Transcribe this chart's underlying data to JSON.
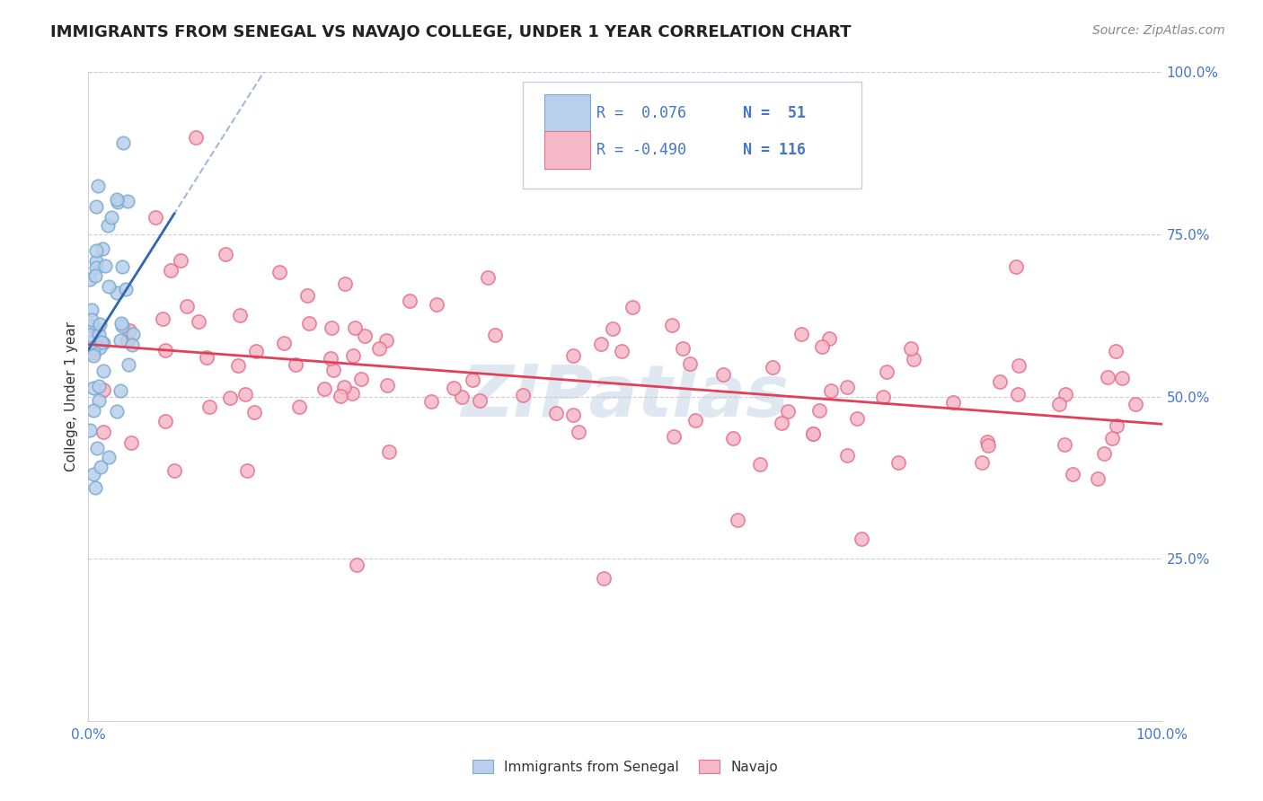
{
  "title": "IMMIGRANTS FROM SENEGAL VS NAVAJO COLLEGE, UNDER 1 YEAR CORRELATION CHART",
  "source": "Source: ZipAtlas.com",
  "ylabel": "College, Under 1 year",
  "xlim": [
    0,
    1
  ],
  "ylim": [
    0,
    1
  ],
  "x_tick_labels": [
    "0.0%",
    "100.0%"
  ],
  "y_tick_labels": [
    "25.0%",
    "50.0%",
    "75.0%",
    "100.0%"
  ],
  "y_tick_values": [
    0.25,
    0.5,
    0.75,
    1.0
  ],
  "legend_labels": [
    "Immigrants from Senegal",
    "Navajo"
  ],
  "legend_r_blue": "R =  0.076",
  "legend_n_blue": "N =  51",
  "legend_r_pink": "R = -0.490",
  "legend_n_pink": "N = 116",
  "blue_fill": "#b8d0eb",
  "blue_edge": "#7aaad0",
  "pink_fill": "#f5b8c8",
  "pink_edge": "#e87090",
  "blue_line_color": "#3366aa",
  "blue_dash_color": "#88aad0",
  "pink_line_color": "#e0405a",
  "axis_color": "#4477cc",
  "grid_color": "#ccccdd",
  "text_color": "#333333",
  "watermark": "ZIPatlas",
  "background_color": "#ffffff",
  "title_fontsize": 13,
  "blue_n": 51,
  "pink_n": 116,
  "blue_r": 0.076,
  "pink_r": -0.49,
  "blue_seed": 7,
  "pink_seed": 13
}
